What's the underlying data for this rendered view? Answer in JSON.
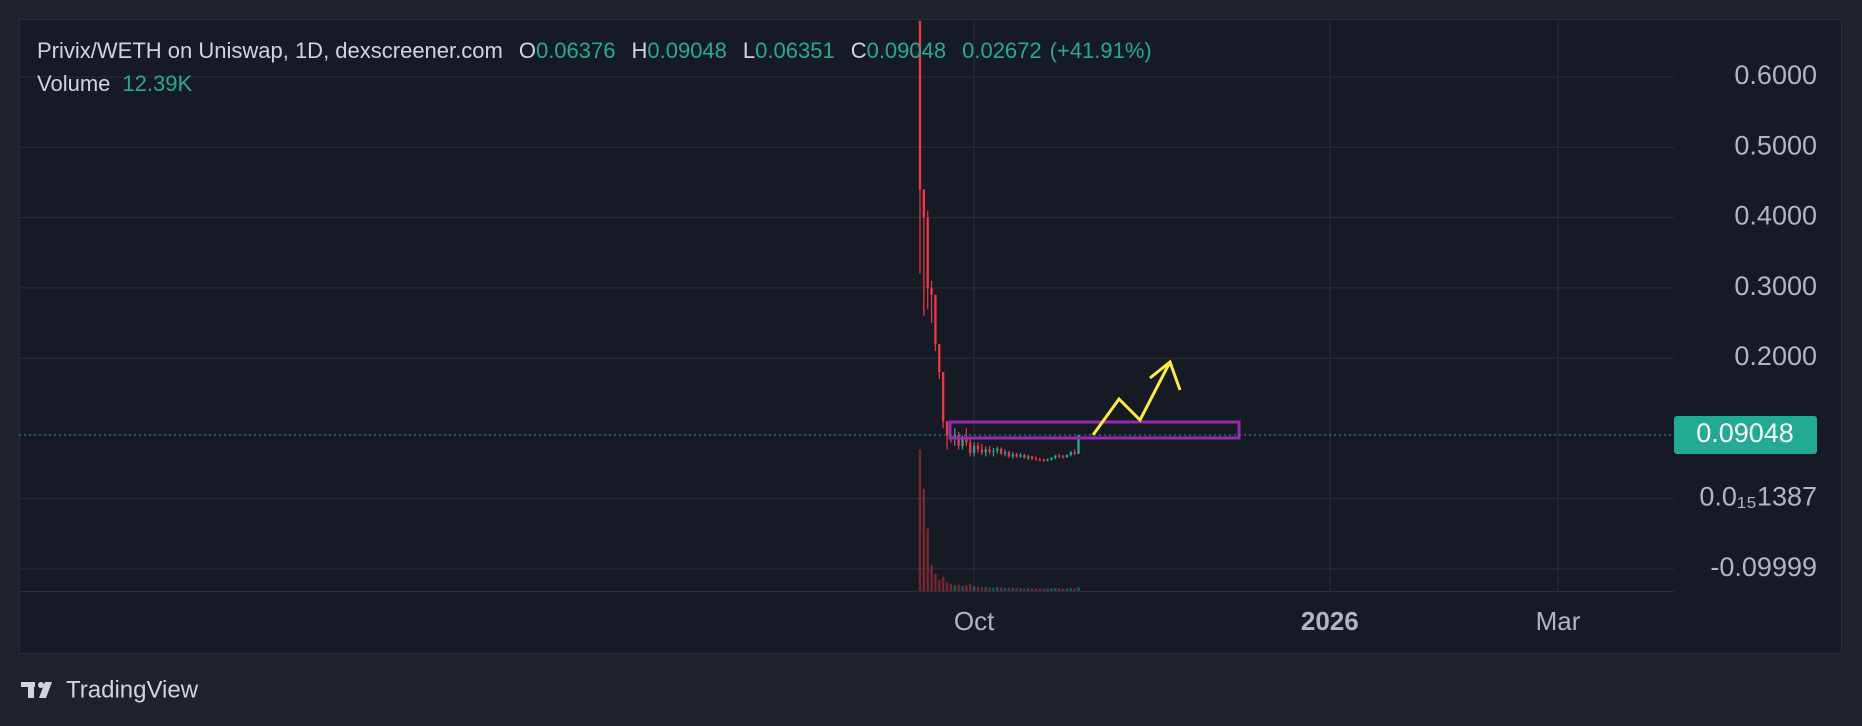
{
  "header": {
    "title": "Privix/WETH on Uniswap, 1D, dexscreener.com",
    "o_label": "O",
    "h_label": "H",
    "l_label": "L",
    "c_label": "C",
    "change": "0.02672",
    "change_pct": "(+41.91%)",
    "volume_label": "Volume",
    "volume_value": "12.39K",
    "brand": "TradingView"
  },
  "chart_data": {
    "type": "candlestick",
    "x": [
      0,
      1,
      2,
      3,
      4,
      5,
      6,
      7,
      8,
      9,
      10,
      11,
      12,
      13,
      14,
      15,
      16,
      17,
      18,
      19,
      20,
      21,
      22,
      23,
      24,
      25,
      26,
      27,
      28,
      29,
      30,
      31,
      32,
      33,
      34,
      35,
      36,
      37,
      38,
      39,
      40,
      41
    ],
    "ohlc": [
      [
        0.68,
        0.68,
        0.32,
        0.44
      ],
      [
        0.44,
        0.44,
        0.26,
        0.4
      ],
      [
        0.4,
        0.41,
        0.27,
        0.3
      ],
      [
        0.3,
        0.31,
        0.25,
        0.29
      ],
      [
        0.29,
        0.29,
        0.21,
        0.22
      ],
      [
        0.22,
        0.22,
        0.17,
        0.18
      ],
      [
        0.18,
        0.18,
        0.1,
        0.11
      ],
      [
        0.11,
        0.11,
        0.07,
        0.09
      ],
      [
        0.09,
        0.1,
        0.08,
        0.085
      ],
      [
        0.085,
        0.1,
        0.075,
        0.09
      ],
      [
        0.09,
        0.095,
        0.07,
        0.075
      ],
      [
        0.075,
        0.09,
        0.07,
        0.085
      ],
      [
        0.085,
        0.1,
        0.075,
        0.08
      ],
      [
        0.08,
        0.085,
        0.06,
        0.065
      ],
      [
        0.065,
        0.08,
        0.06,
        0.075
      ],
      [
        0.075,
        0.08,
        0.065,
        0.07
      ],
      [
        0.07,
        0.078,
        0.062,
        0.066
      ],
      [
        0.066,
        0.074,
        0.06,
        0.07
      ],
      [
        0.07,
        0.075,
        0.063,
        0.067
      ],
      [
        0.067,
        0.072,
        0.06,
        0.068
      ],
      [
        0.068,
        0.074,
        0.064,
        0.071
      ],
      [
        0.071,
        0.073,
        0.062,
        0.064
      ],
      [
        0.064,
        0.07,
        0.06,
        0.066
      ],
      [
        0.066,
        0.068,
        0.058,
        0.06
      ],
      [
        0.06,
        0.066,
        0.057,
        0.063
      ],
      [
        0.063,
        0.065,
        0.058,
        0.06
      ],
      [
        0.06,
        0.065,
        0.058,
        0.062
      ],
      [
        0.062,
        0.064,
        0.057,
        0.058
      ],
      [
        0.058,
        0.062,
        0.055,
        0.06
      ],
      [
        0.06,
        0.061,
        0.055,
        0.057
      ],
      [
        0.057,
        0.06,
        0.054,
        0.056
      ],
      [
        0.056,
        0.058,
        0.053,
        0.055
      ],
      [
        0.055,
        0.057,
        0.052,
        0.054
      ],
      [
        0.054,
        0.057,
        0.053,
        0.056
      ],
      [
        0.056,
        0.059,
        0.054,
        0.058
      ],
      [
        0.058,
        0.062,
        0.056,
        0.061
      ],
      [
        0.061,
        0.064,
        0.058,
        0.06
      ],
      [
        0.06,
        0.062,
        0.057,
        0.059
      ],
      [
        0.059,
        0.063,
        0.058,
        0.062
      ],
      [
        0.062,
        0.068,
        0.06,
        0.066
      ],
      [
        0.066,
        0.07,
        0.062,
        0.06376
      ],
      [
        0.06376,
        0.09048,
        0.06351,
        0.09048
      ]
    ],
    "volume": [
      500000,
      360000,
      220000,
      90000,
      60000,
      40000,
      50000,
      30000,
      25000,
      20000,
      22000,
      18000,
      20000,
      26000,
      16000,
      15000,
      14000,
      15000,
      13000,
      12000,
      14000,
      12000,
      11000,
      12000,
      10000,
      11000,
      10000,
      9000,
      10000,
      9000,
      8000,
      9000,
      8000,
      9000,
      10000,
      11000,
      9000,
      8000,
      9000,
      10000,
      9000,
      12390
    ],
    "up_color": "#22ab94",
    "down_color": "#f23645",
    "xlim": [
      -233,
      195
    ],
    "xticks": [
      {
        "value": 14,
        "label": "Oct"
      },
      {
        "value": 106,
        "label": "2026"
      },
      {
        "value": 165,
        "label": "Mar"
      }
    ],
    "ylim": [
      -0.1315,
      0.6826
    ],
    "yticks": [
      {
        "value": 0.6,
        "label": "0.6000"
      },
      {
        "value": 0.5,
        "label": "0.5000"
      },
      {
        "value": 0.4,
        "label": "0.4000"
      },
      {
        "value": 0.3,
        "label": "0.3000"
      },
      {
        "value": 0.2,
        "label": "0.2000"
      },
      {
        "value": 1.387e-16,
        "label": "0.0₁₅1387"
      },
      {
        "value": -0.09999,
        "label": "-0.09999"
      }
    ],
    "grid": true
  }
}
